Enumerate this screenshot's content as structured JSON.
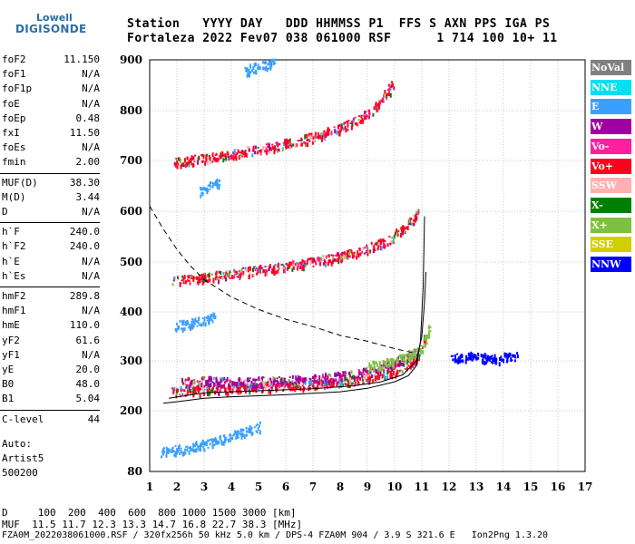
{
  "logo": {
    "line1": "Lowell",
    "line2": "DIGISONDE"
  },
  "header": {
    "row1": "Station   YYYY DAY   DDD HHMMSS P1  FFS S AXN PPS IGA PS",
    "row2": "Fortaleza 2022 Fev07 038 061000 RSF      1 714 100 10+ 11"
  },
  "params_group1": [
    {
      "k": "foF2",
      "v": "11.150"
    },
    {
      "k": "foF1",
      "v": "N/A"
    },
    {
      "k": "foF1p",
      "v": "N/A"
    },
    {
      "k": "foE",
      "v": "N/A"
    },
    {
      "k": "foEp",
      "v": "0.48"
    },
    {
      "k": "fxI",
      "v": "11.50"
    },
    {
      "k": "foEs",
      "v": "N/A"
    },
    {
      "k": "fmin",
      "v": "2.00"
    }
  ],
  "params_group2": [
    {
      "k": "MUF(D)",
      "v": "38.30"
    },
    {
      "k": "M(D)",
      "v": "3.44"
    },
    {
      "k": "D",
      "v": "N/A"
    }
  ],
  "params_group3": [
    {
      "k": "h`F",
      "v": "240.0"
    },
    {
      "k": "h`F2",
      "v": "240.0"
    },
    {
      "k": "h`E",
      "v": "N/A"
    },
    {
      "k": "h`Es",
      "v": "N/A"
    }
  ],
  "params_group4": [
    {
      "k": "hmF2",
      "v": "289.8"
    },
    {
      "k": "hmF1",
      "v": "N/A"
    },
    {
      "k": "hmE",
      "v": "110.0"
    },
    {
      "k": "yF2",
      "v": "61.6"
    },
    {
      "k": "yF1",
      "v": "N/A"
    },
    {
      "k": "yE",
      "v": "20.0"
    },
    {
      "k": "B0",
      "v": "48.0"
    },
    {
      "k": "B1",
      "v": "5.04"
    }
  ],
  "params_group5": [
    {
      "k": "C-level",
      "v": "44"
    }
  ],
  "autoscale": {
    "line1": "Auto:",
    "line2": "Artist5",
    "line3": "500200"
  },
  "footer": {
    "row1": "D     100  200  400  600  800 1000 1500 3000 [km]",
    "row2": "MUF  11.5 11.7 12.3 13.3 14.7 16.8 22.7 38.3 [MHz]",
    "row3": "FZA0M_2022038061000.RSF / 320fx256h 50 kHz 5.0 km / DPS-4 FZA0M 904 / 3.9 S 321.6 E   Ion2Png 1.3.20"
  },
  "legend": [
    {
      "label": "NoVal",
      "color": "#808080"
    },
    {
      "label": "NNE",
      "color": "#00e0f0"
    },
    {
      "label": "E",
      "color": "#3aa0ff"
    },
    {
      "label": "W",
      "color": "#a000a0"
    },
    {
      "label": "Vo-",
      "color": "#ff20a0"
    },
    {
      "label": "Vo+",
      "color": "#ff0020"
    },
    {
      "label": "SSW",
      "color": "#ffb0b0"
    },
    {
      "label": "X-",
      "color": "#008000"
    },
    {
      "label": "X+",
      "color": "#80c040"
    },
    {
      "label": "SSE",
      "color": "#d0d000"
    },
    {
      "label": "NNW",
      "color": "#0000ff"
    }
  ],
  "chart_data": {
    "type": "scatter",
    "xlim": [
      1,
      17
    ],
    "ylim": [
      80,
      900
    ],
    "x_ticks": [
      1,
      2,
      3,
      4,
      5,
      6,
      7,
      8,
      9,
      10,
      11,
      12,
      13,
      14,
      15,
      16,
      17
    ],
    "y_ticks": [
      80,
      200,
      300,
      400,
      500,
      600,
      700,
      800,
      900
    ],
    "grid": true,
    "series": [
      {
        "name": "Vo+",
        "trace": [
          [
            1.8,
            240
          ],
          [
            3,
            244
          ],
          [
            5,
            248
          ],
          [
            7,
            255
          ],
          [
            8.5,
            262
          ],
          [
            9.5,
            272
          ],
          [
            10.2,
            285
          ],
          [
            10.7,
            305
          ],
          [
            11,
            330
          ],
          [
            11.1,
            350
          ]
        ]
      },
      {
        "name": "Vo+",
        "trace": [
          [
            1.8,
            465
          ],
          [
            3,
            470
          ],
          [
            4,
            478
          ],
          [
            5,
            486
          ],
          [
            6,
            494
          ],
          [
            7,
            502
          ],
          [
            8,
            512
          ],
          [
            9,
            527
          ],
          [
            9.8,
            545
          ],
          [
            10.4,
            570
          ],
          [
            10.9,
            600
          ]
        ]
      },
      {
        "name": "Vo+",
        "trace": [
          [
            1.9,
            698
          ],
          [
            3,
            705
          ],
          [
            4,
            714
          ],
          [
            5,
            724
          ],
          [
            6,
            735
          ],
          [
            7,
            748
          ],
          [
            8,
            766
          ],
          [
            8.6,
            783
          ],
          [
            9,
            796
          ],
          [
            9.4,
            815
          ],
          [
            9.7,
            835
          ],
          [
            10.0,
            860
          ]
        ]
      },
      {
        "name": "W",
        "trace": [
          [
            2.2,
            258
          ],
          [
            3,
            262
          ],
          [
            4,
            262
          ],
          [
            5,
            260
          ],
          [
            6,
            262
          ],
          [
            7,
            265
          ],
          [
            8,
            270
          ],
          [
            9,
            280
          ],
          [
            10,
            295
          ],
          [
            10.8,
            320
          ]
        ]
      },
      {
        "name": "X+",
        "trace": [
          [
            9,
            290
          ],
          [
            10,
            300
          ],
          [
            10.6,
            315
          ],
          [
            11,
            330
          ],
          [
            11.2,
            350
          ],
          [
            11.3,
            370
          ]
        ]
      },
      {
        "name": "NNW",
        "trace": [
          [
            12,
            305
          ],
          [
            12.5,
            310
          ],
          [
            13,
            312
          ],
          [
            13.5,
            305
          ],
          [
            14,
            308
          ],
          [
            14.5,
            310
          ]
        ]
      },
      {
        "name": "E",
        "trace": [
          [
            1.4,
            118
          ],
          [
            2,
            124
          ],
          [
            3,
            135
          ],
          [
            3.5,
            145
          ],
          [
            4,
            150
          ],
          [
            4.5,
            160
          ],
          [
            5,
            170
          ]
        ]
      },
      {
        "name": "E",
        "trace": [
          [
            1.9,
            373
          ],
          [
            2.5,
            378
          ],
          [
            3,
            385
          ],
          [
            3.4,
            392
          ]
        ]
      },
      {
        "name": "E",
        "trace": [
          [
            2.8,
            640
          ],
          [
            3.2,
            650
          ],
          [
            3.6,
            660
          ]
        ]
      },
      {
        "name": "E",
        "trace": [
          [
            4.5,
            880
          ],
          [
            5,
            888
          ],
          [
            5.6,
            895
          ]
        ]
      }
    ],
    "true_height_profile": [
      [
        1.5,
        215
      ],
      [
        2,
        218
      ],
      [
        3,
        225
      ],
      [
        4,
        228
      ],
      [
        5,
        230
      ],
      [
        6,
        232
      ],
      [
        7,
        235
      ],
      [
        8,
        238
      ],
      [
        9,
        245
      ],
      [
        10,
        258
      ],
      [
        10.5,
        270
      ],
      [
        10.8,
        290
      ],
      [
        10.95,
        340
      ],
      [
        11.05,
        450
      ],
      [
        11.1,
        590
      ]
    ],
    "extension_curve": [
      [
        1.7,
        225
      ],
      [
        3,
        236
      ],
      [
        5,
        240
      ],
      [
        7,
        244
      ],
      [
        8.5,
        250
      ],
      [
        9.5,
        258
      ],
      [
        10.3,
        272
      ],
      [
        10.8,
        300
      ],
      [
        11.0,
        350
      ],
      [
        11.1,
        420
      ],
      [
        11.15,
        480
      ]
    ],
    "dashed_curve": [
      [
        1,
        610
      ],
      [
        1.5,
        565
      ],
      [
        2,
        525
      ],
      [
        2.5,
        492
      ],
      [
        3,
        465
      ],
      [
        4,
        430
      ],
      [
        5,
        405
      ],
      [
        6,
        385
      ],
      [
        7,
        370
      ],
      [
        8,
        352
      ],
      [
        9,
        340
      ],
      [
        10,
        325
      ],
      [
        10.8,
        315
      ]
    ]
  }
}
